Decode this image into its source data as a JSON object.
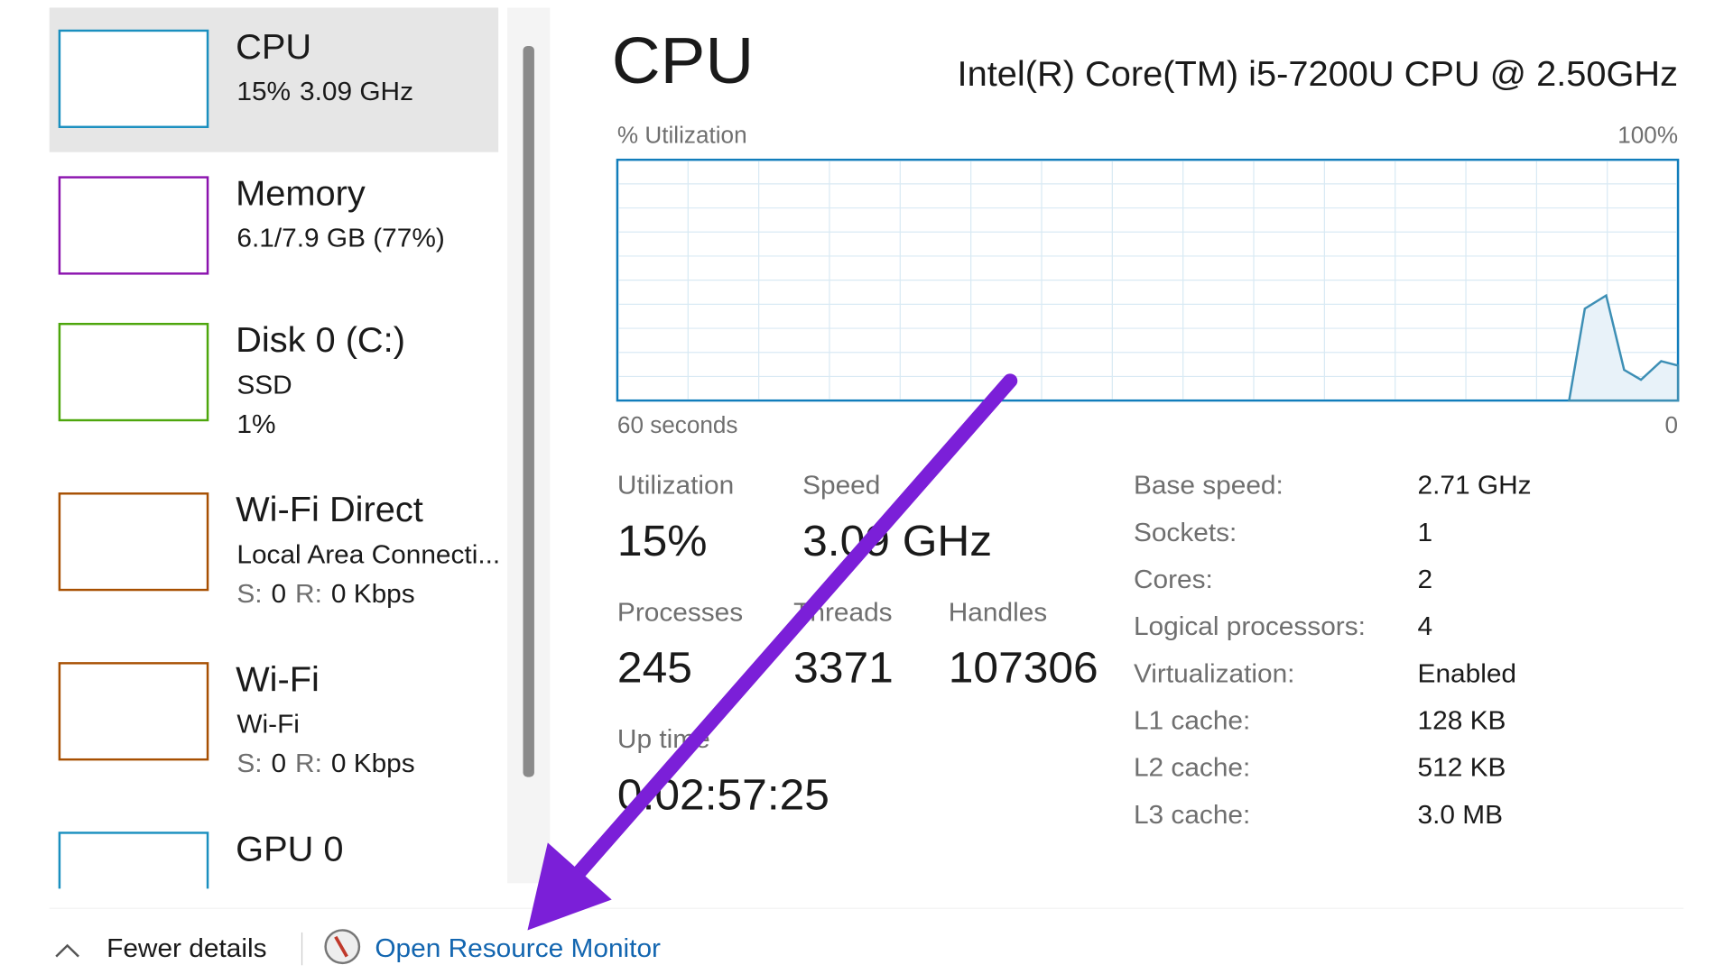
{
  "sidebar": {
    "items": [
      {
        "title": "CPU",
        "color": "#1a8fbf",
        "lines": [
          [
            "15%",
            "3.09 GHz"
          ]
        ]
      },
      {
        "title": "Memory",
        "color": "#8b12ae",
        "lines": [
          [
            "6.1/7.9 GB (77%)"
          ]
        ]
      },
      {
        "title": "Disk 0 (C:)",
        "color": "#4da60c",
        "lines": [
          [
            "SSD"
          ],
          [
            "1%"
          ]
        ]
      },
      {
        "title": "Wi-Fi Direct",
        "color": "#a74f01",
        "lines": [
          [
            "Local Area Connecti..."
          ],
          [
            "S:",
            "0",
            "R:",
            "0 Kbps"
          ]
        ]
      },
      {
        "title": "Wi-Fi",
        "color": "#a74f01",
        "lines": [
          [
            "Wi-Fi"
          ],
          [
            "S:",
            "0",
            "R:",
            "0 Kbps"
          ]
        ]
      },
      {
        "title": "GPU 0",
        "color": "#1a8fbf",
        "lines": []
      }
    ]
  },
  "main": {
    "title": "CPU",
    "model": "Intel(R) Core(TM) i5-7200U CPU @ 2.50GHz",
    "graph": {
      "y_label": "% Utilization",
      "y_max_label": "100%",
      "x_start_label": "60 seconds",
      "x_end_label": "0"
    },
    "stats": [
      {
        "label": "Utilization",
        "value": "15%"
      },
      {
        "label": "Speed",
        "value": "3.09 GHz"
      },
      {
        "label": "Processes",
        "value": "245"
      },
      {
        "label": "Threads",
        "value": "3371"
      },
      {
        "label": "Handles",
        "value": "107306"
      },
      {
        "label": "Up time",
        "value": "0:02:57:25"
      }
    ],
    "details": [
      {
        "label": "Base speed:",
        "value": "2.71 GHz"
      },
      {
        "label": "Sockets:",
        "value": "1"
      },
      {
        "label": "Cores:",
        "value": "2"
      },
      {
        "label": "Logical processors:",
        "value": "4"
      },
      {
        "label": "Virtualization:",
        "value": "Enabled"
      },
      {
        "label": "L1 cache:",
        "value": "128 KB"
      },
      {
        "label": "L2 cache:",
        "value": "512 KB"
      },
      {
        "label": "L3 cache:",
        "value": "3.0 MB"
      }
    ]
  },
  "footer": {
    "fewer_details": "Fewer details",
    "resource_monitor": "Open Resource Monitor"
  }
}
